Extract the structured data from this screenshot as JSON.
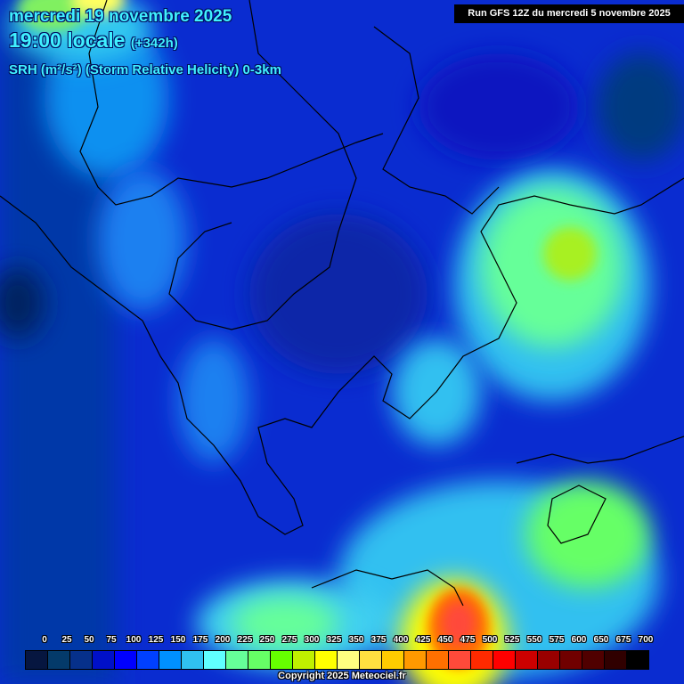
{
  "header": {
    "date": "mercredi 19 novembre 2025",
    "time": "19:00 locale",
    "lead": "(+342h)",
    "parameter": "SRH (m²/s²) (Storm Relative Helicity) 0-3km",
    "run": "Run GFS 12Z du mercredi 5 novembre 2025"
  },
  "legend": {
    "labels": [
      "0",
      "25",
      "50",
      "75",
      "100",
      "125",
      "150",
      "175",
      "200",
      "225",
      "250",
      "275",
      "300",
      "325",
      "350",
      "375",
      "400",
      "425",
      "450",
      "475",
      "500",
      "525",
      "550",
      "575",
      "600",
      "650",
      "675",
      "700"
    ],
    "colors": [
      "#061640",
      "#043a6a",
      "#06308a",
      "#0010c8",
      "#0000ff",
      "#0040ff",
      "#0090ff",
      "#30c0f0",
      "#60ffff",
      "#66ff99",
      "#66ff66",
      "#66ff00",
      "#c0f000",
      "#ffff00",
      "#ffff80",
      "#ffe040",
      "#ffcc00",
      "#ff9900",
      "#ff7000",
      "#ff4a3a",
      "#ff2a00",
      "#ff0000",
      "#cc0000",
      "#990000",
      "#700000",
      "#500000",
      "#300000",
      "#000000"
    ]
  },
  "copyright": "Copyright 2025 Meteociel.fr"
}
